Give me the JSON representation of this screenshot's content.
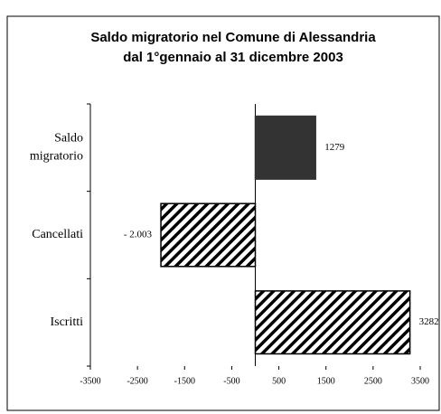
{
  "chart_data": {
    "type": "hbar",
    "title": "Saldo migratorio nel Comune di Alessandria",
    "subtitle": "dal 1°gennaio al 31 dicembre 2003",
    "categories": [
      "Saldo migratorio",
      "Cancellati",
      "Iscritti"
    ],
    "values": [
      1279,
      -2003,
      3282
    ],
    "value_labels": [
      "1279",
      "- 2.003",
      "3282"
    ],
    "colors": [
      "#333333",
      "#000000",
      "#000000"
    ],
    "patterns": [
      "solid",
      "hatch",
      "hatch"
    ],
    "xlim": [
      -3500,
      3500
    ],
    "xticks": [
      -3500,
      -2500,
      -1500,
      -500,
      500,
      1500,
      2500,
      3500
    ]
  }
}
